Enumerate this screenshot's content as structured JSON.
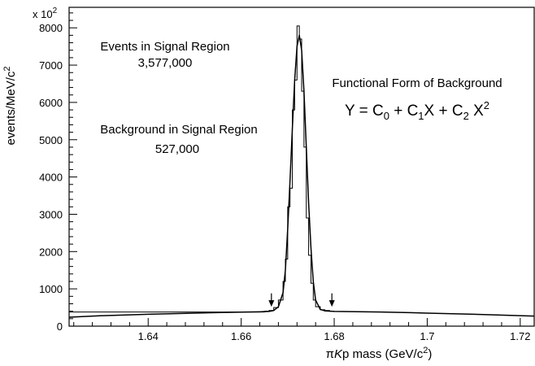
{
  "chart_data": {
    "type": "line",
    "xlabel": {
      "greek": "π",
      "italic": "K",
      "rest": "p mass (GeV/c",
      "sup": "2",
      "close": ")"
    },
    "ylabel": {
      "main": "events/MeV/c",
      "sup": "2"
    },
    "y_multiplier": {
      "main": "x 10",
      "sup": "2"
    },
    "xlim": [
      1.623,
      1.723
    ],
    "ylim": [
      0,
      8550
    ],
    "x_ticks": [
      1.64,
      1.66,
      1.68,
      1.7,
      1.72
    ],
    "x_tick_labels": [
      "1.64",
      "1.66",
      "1.68",
      "1.7",
      "1.72"
    ],
    "y_ticks": [
      0,
      1000,
      2000,
      3000,
      4000,
      5000,
      6000,
      7000,
      8000
    ],
    "y_tick_labels": [
      "0",
      "1000",
      "2000",
      "3000",
      "4000",
      "5000",
      "6000",
      "7000",
      "8000"
    ],
    "series": [
      {
        "style": "histogram-step",
        "bin_edges": [
          1.623,
          1.665,
          1.666,
          1.667,
          1.668,
          1.669,
          1.6695,
          1.67,
          1.6705,
          1.671,
          1.6715,
          1.672,
          1.6725,
          1.673,
          1.6735,
          1.674,
          1.6745,
          1.675,
          1.6755,
          1.676,
          1.677,
          1.678,
          1.679,
          1.68
        ],
        "values": [
          380,
          400,
          420,
          500,
          700,
          1200,
          1800,
          3200,
          3700,
          5800,
          6600,
          8050,
          7700,
          6300,
          4800,
          2900,
          1900,
          1150,
          700,
          520,
          440,
          420,
          400
        ]
      },
      {
        "style": "smooth-fit",
        "x": [
          1.623,
          1.63,
          1.64,
          1.65,
          1.66,
          1.664,
          1.666,
          1.667,
          1.668,
          1.669,
          1.6695,
          1.67,
          1.6705,
          1.671,
          1.6715,
          1.672,
          1.6725,
          1.673,
          1.6735,
          1.674,
          1.6745,
          1.675,
          1.6755,
          1.676,
          1.677,
          1.678,
          1.68,
          1.69,
          1.7,
          1.71,
          1.723
        ],
        "y": [
          240,
          280,
          320,
          350,
          375,
          385,
          395,
          420,
          520,
          900,
          1500,
          2600,
          3900,
          5300,
          6600,
          7500,
          7800,
          7400,
          6300,
          4800,
          3300,
          2100,
          1200,
          700,
          450,
          410,
          395,
          380,
          350,
          320,
          270
        ]
      }
    ],
    "signal_region_arrows": [
      1.6665,
      1.6795
    ],
    "annotations": {
      "events_title": "Events in Signal Region",
      "events_value": "3,577,000",
      "bkg_title": "Background in Signal Region",
      "bkg_value": "527,000",
      "func_title": "Functional Form of Background",
      "formula": {
        "y": "Y = C",
        "s0": "0",
        "p1": " + C",
        "s1": "1",
        "p2": "X + C",
        "s2": "2",
        "p3": " X",
        "e2": "2"
      }
    }
  }
}
